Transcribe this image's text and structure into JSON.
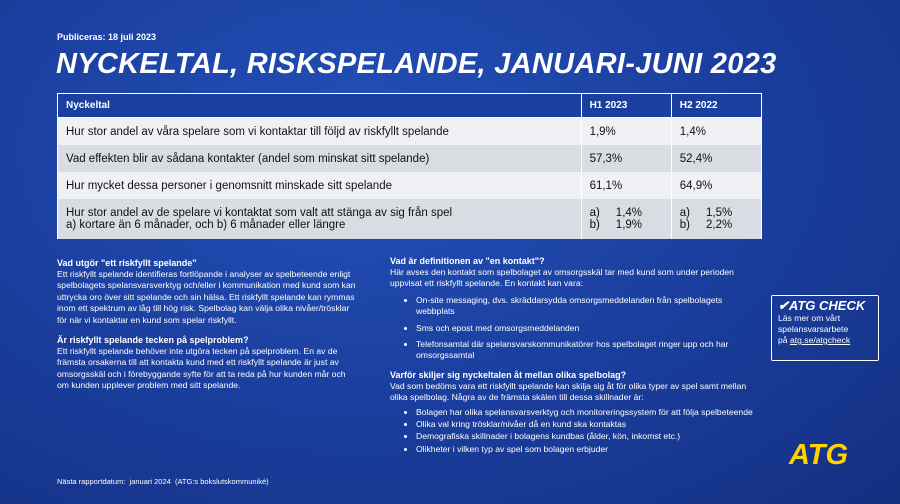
{
  "header": {
    "published": "Publiceras: 18 juli 2023",
    "title": "NYCKELTAL, RISKSPELANDE, JANUARI-JUNI 2023"
  },
  "table": {
    "columns": [
      "Nyckeltal",
      "H1 2023",
      "H2 2022"
    ],
    "rows": [
      [
        "Hur stor andel av våra spelare som vi kontaktar till följd av riskfyllt spelande",
        "1,9%",
        "1,4%"
      ],
      [
        "Vad effekten blir av sådana kontakter (andel som minskat sitt spelande)",
        "57,3%",
        "52,4%"
      ],
      [
        "Hur mycket dessa personer i genomsnitt minskade sitt spelande",
        "61,1%",
        "64,9%"
      ],
      [
        [
          "Hur stor andel av de spelare vi kontaktat som valt att stänga av sig från spel",
          "a) kortare än 6 månader, och b) 6 månader eller längre"
        ],
        [
          [
            "a)",
            "1,4%"
          ],
          [
            "b)",
            "1,9%"
          ]
        ],
        [
          [
            "a)",
            "1,5%"
          ],
          [
            "b)",
            "2,2%"
          ]
        ]
      ]
    ]
  },
  "left": [
    {
      "heading": "Vad utgör \"ett riskfyllt spelande\"",
      "text": "Ett riskfyllt spelande identifieras fortlöpande i analyser av spelbeteende enligt spelbolagets spelansvarsverktyg och/eller i kommunikation med kund som kan uttrycka oro över sitt spelande och sin hälsa. Ett riskfyllt spelande kan rymmas inom ett spektrum av låg till hög risk. Spelbolag kan välja olika nivåer/trösklar för när vi kontaktar en kund som spelar riskfyllt."
    },
    {
      "heading": "Är riskfyllt spelande tecken på spelproblem?",
      "text": "Ett riskfyllt spelande behöver inte utgöra tecken på spelproblem. En av de främsta orsakerna till att kontakta kund med ett riskfyllt spelande är just av omsorgsskäl och i förebyggande syfte för att ta reda på hur kunden mår och om kunden upplever problem med sitt spelande."
    }
  ],
  "right": [
    {
      "heading": "Vad är definitionen av \"en kontakt\"?",
      "text": "Här avses den kontakt som spelbolaget av omsorgsskäl tar med kund som under perioden uppvisat ett riskfyllt spelande. En kontakt kan vara:",
      "bullets": [
        "On-site messaging, dvs. skräddarsydda omsorgsmeddelanden från spelbolagets webbplats",
        "Sms och epost med omsorgsmeddelanden",
        "Telefonsamtal där spelansvarskommunikatörer hos spelbolaget ringer upp och har omsorgssamtal"
      ]
    },
    {
      "heading": "Varför skiljer sig nyckeltalen åt mellan olika spelbolag?",
      "text": "Vad som bedöms vara ett riskfyllt spelande kan skilja sig åt för olika typer av spel samt mellan olika spelbolag. Några av de främsta skälen till dessa skillnader är:",
      "bullets": [
        "Bolagen har olika spelansvarsverktyg och monitoreringssystem för att följa spelbeteende",
        "Olika val kring trösklar/nivåer då en kund ska kontaktas",
        "Demografiska skillnader i bolagens kundbas (ålder, kön, inkomst etc.)",
        "Olikheter i vilken typ av spel som bolagen erbjuder"
      ]
    }
  ],
  "atg_check": {
    "title": "ATG CHECK",
    "lines": [
      "Läs mer om vårt",
      "spelansvarsarbete"
    ],
    "prefix": "på",
    "link": "atg.se/atgcheck"
  },
  "logo": "ATG",
  "footer": "Nästa rapportdatum:  januari 2024  (ATG:s bokslutskommuniké)"
}
